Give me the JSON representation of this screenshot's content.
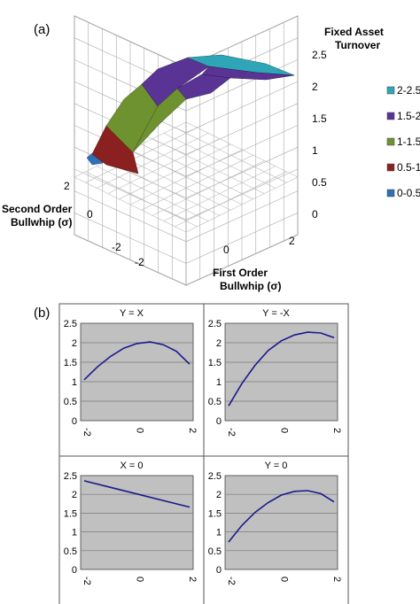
{
  "panel_a_label": "(a)",
  "panel_b_label": "(b)",
  "colors": {
    "band_0_05": "#2e6fb6",
    "band_05_1": "#8b2020",
    "band_1_15": "#6f9230",
    "band_15_2": "#5a3494",
    "band_2_25": "#2ea6b8",
    "plot_bg": "#c0c0c0",
    "line": "#1a1a8c"
  },
  "chart_data": [
    {
      "type": "surface",
      "panel": "(a)",
      "zlabel_line1": "Fixed Asset",
      "zlabel_line2": "Turnover",
      "xlabel_line1": "First Order",
      "xlabel_line2": "Bullwhip (σ)",
      "ylabel_line1": "Second Order",
      "ylabel_line2": "Bullwhip (σ)",
      "zlim": [
        0,
        2.5
      ],
      "z_ticks": [
        "2.5",
        "2",
        "1.5",
        "1",
        "0.5",
        "0"
      ],
      "x_ticks": [
        "-2",
        "0",
        "2"
      ],
      "y_ticks": [
        "2",
        "0",
        "-2"
      ],
      "legend": [
        "2-2.5",
        "1.5-2",
        "1-1.5",
        "0.5-1",
        "0-0.5"
      ],
      "grid": true,
      "legend_position": "right"
    },
    {
      "type": "line",
      "title": "Y = X",
      "x": [
        -2,
        -1.5,
        -1,
        -0.5,
        0,
        0.5,
        1,
        1.5,
        2
      ],
      "y": [
        1.05,
        1.38,
        1.65,
        1.86,
        1.98,
        2.02,
        1.95,
        1.78,
        1.45
      ],
      "ylim": [
        0,
        2.5
      ],
      "y_ticks": [
        "2.5",
        "2",
        "1.5",
        "1",
        "0.5",
        "0"
      ],
      "x_ticks": [
        "-2",
        "0",
        "2"
      ],
      "grid": true
    },
    {
      "type": "line",
      "title": "Y = -X",
      "x": [
        -2,
        -1.5,
        -1,
        -0.5,
        0,
        0.5,
        1,
        1.5,
        2
      ],
      "y": [
        0.38,
        0.95,
        1.42,
        1.8,
        2.05,
        2.2,
        2.27,
        2.25,
        2.13
      ],
      "ylim": [
        0,
        2.5
      ],
      "y_ticks": [
        "2.5",
        "2",
        "1.5",
        "1",
        "0.5",
        "0"
      ],
      "x_ticks": [
        "-2",
        "0",
        "2"
      ],
      "grid": true
    },
    {
      "type": "line",
      "title": "X = 0",
      "x": [
        -2,
        2
      ],
      "y": [
        2.36,
        1.66
      ],
      "ylim": [
        0,
        2.5
      ],
      "y_ticks": [
        "2.5",
        "2",
        "1.5",
        "1",
        "0.5",
        "0"
      ],
      "x_ticks": [
        "-2",
        "0",
        "2"
      ],
      "grid": true
    },
    {
      "type": "line",
      "title": "Y = 0",
      "x": [
        -2,
        -1.5,
        -1,
        -0.5,
        0,
        0.5,
        1,
        1.5,
        2
      ],
      "y": [
        0.73,
        1.17,
        1.52,
        1.78,
        1.98,
        2.08,
        2.1,
        2.02,
        1.8
      ],
      "ylim": [
        0,
        2.5
      ],
      "y_ticks": [
        "2.5",
        "2",
        "1.5",
        "1",
        "0.5",
        "0"
      ],
      "x_ticks": [
        "-2",
        "0",
        "2"
      ],
      "grid": true
    }
  ]
}
